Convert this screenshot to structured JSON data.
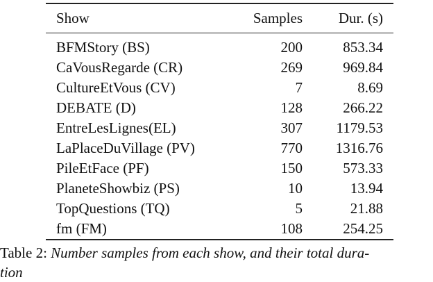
{
  "table": {
    "headers": {
      "show": "Show",
      "samples": "Samples",
      "duration": "Dur. (s)"
    },
    "rows": [
      {
        "show": "BFMStory (BS)",
        "samples": "200",
        "duration": "853.34"
      },
      {
        "show": "CaVousRegarde (CR)",
        "samples": "269",
        "duration": "969.84"
      },
      {
        "show": "CultureEtVous (CV)",
        "samples": "7",
        "duration": "8.69"
      },
      {
        "show": "DEBATE (D)",
        "samples": "128",
        "duration": "266.22"
      },
      {
        "show": "EntreLesLignes(EL)",
        "samples": "307",
        "duration": "1179.53"
      },
      {
        "show": "LaPlaceDuVillage (PV)",
        "samples": "770",
        "duration": "1316.76"
      },
      {
        "show": "PileEtFace (PF)",
        "samples": "150",
        "duration": "573.33"
      },
      {
        "show": "PlaneteShowbiz (PS)",
        "samples": "10",
        "duration": "13.94"
      },
      {
        "show": "TopQuestions (TQ)",
        "samples": "5",
        "duration": "21.88"
      },
      {
        "show": "fm (FM)",
        "samples": "108",
        "duration": "254.25"
      }
    ]
  },
  "caption": {
    "label": "Table 2: ",
    "text_line1": "Number samples from each show, and their total dura-",
    "text_line2": "tion"
  }
}
